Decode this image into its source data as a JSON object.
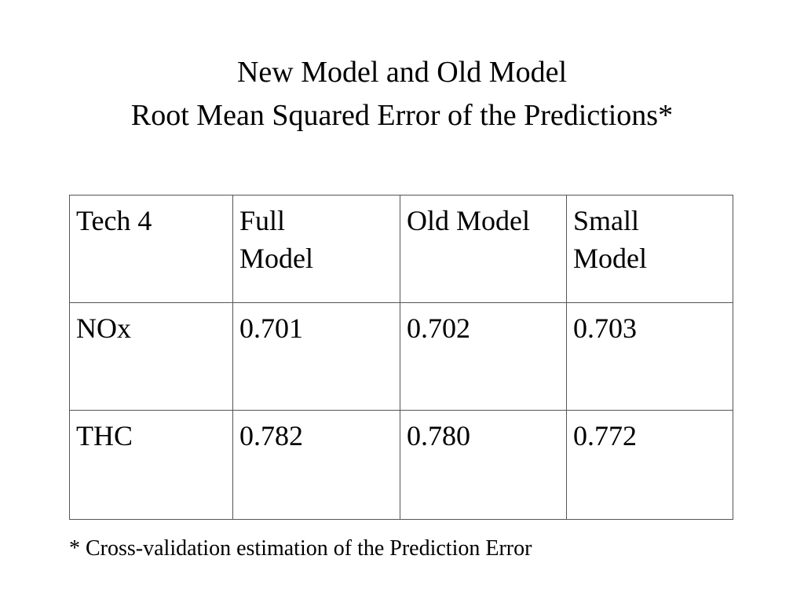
{
  "title": [
    "New Model and Old Model",
    "Root Mean Squared Error of the Predictions*"
  ],
  "table": {
    "header": [
      "Tech 4",
      "Full Model",
      "Old Model",
      "Small Model"
    ],
    "rows": [
      [
        "NOx",
        "0.701",
        "0.702",
        "0.703"
      ],
      [
        "THC",
        "0.782",
        "0.780",
        "0.772"
      ]
    ]
  },
  "footnote": "* Cross-validation estimation of the Prediction Error"
}
